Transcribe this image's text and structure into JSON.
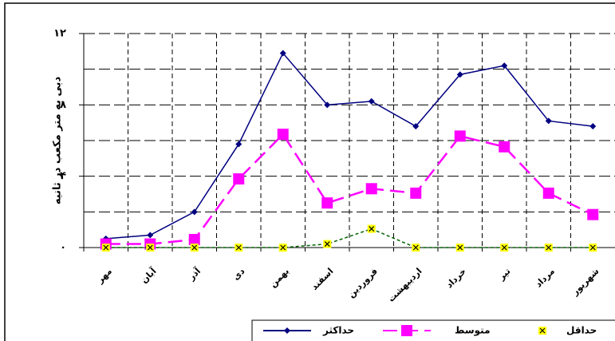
{
  "chart_data": {
    "type": "line",
    "y_label": "دبی به متر مکعب در ثانیه",
    "categories": [
      "مهر",
      "آبان",
      "آذر",
      "دی",
      "بهمن",
      "اسفند",
      "فروردین",
      "اردیبهشت",
      "خرداد",
      "تیر",
      "مرداد",
      "شهریور"
    ],
    "series": [
      {
        "name": "حداکثر",
        "color": "#000080",
        "marker": "diamond",
        "dash": "none",
        "values": [
          0.5,
          0.7,
          2.0,
          5.8,
          10.9,
          8.0,
          8.2,
          6.8,
          9.7,
          10.2,
          7.1,
          6.8
        ]
      },
      {
        "name": "متوسط",
        "color": "#ff00ff",
        "marker": "square",
        "dash": "18 8",
        "values": [
          0.2,
          0.2,
          0.45,
          3.85,
          6.35,
          2.5,
          3.3,
          3.05,
          6.25,
          5.65,
          3.05,
          1.85
        ]
      },
      {
        "name": "حداقل",
        "color": "#ffff00",
        "marker": "xsquare",
        "dash": "4 3",
        "line_color": "#006400",
        "values": [
          0,
          0,
          0,
          0,
          0,
          0.2,
          1.05,
          0,
          0,
          0,
          0,
          0
        ]
      }
    ],
    "ylim": [
      0,
      12
    ],
    "yticks": [
      {
        "value": 0,
        "label": "۰"
      },
      {
        "value": 4,
        "label": "۴"
      },
      {
        "value": 8,
        "label": "۸"
      },
      {
        "value": 12,
        "label": "۱۲"
      }
    ],
    "y_minor_gridlines": [
      2,
      6,
      10
    ],
    "grid": true,
    "legend": "bottom-right"
  }
}
